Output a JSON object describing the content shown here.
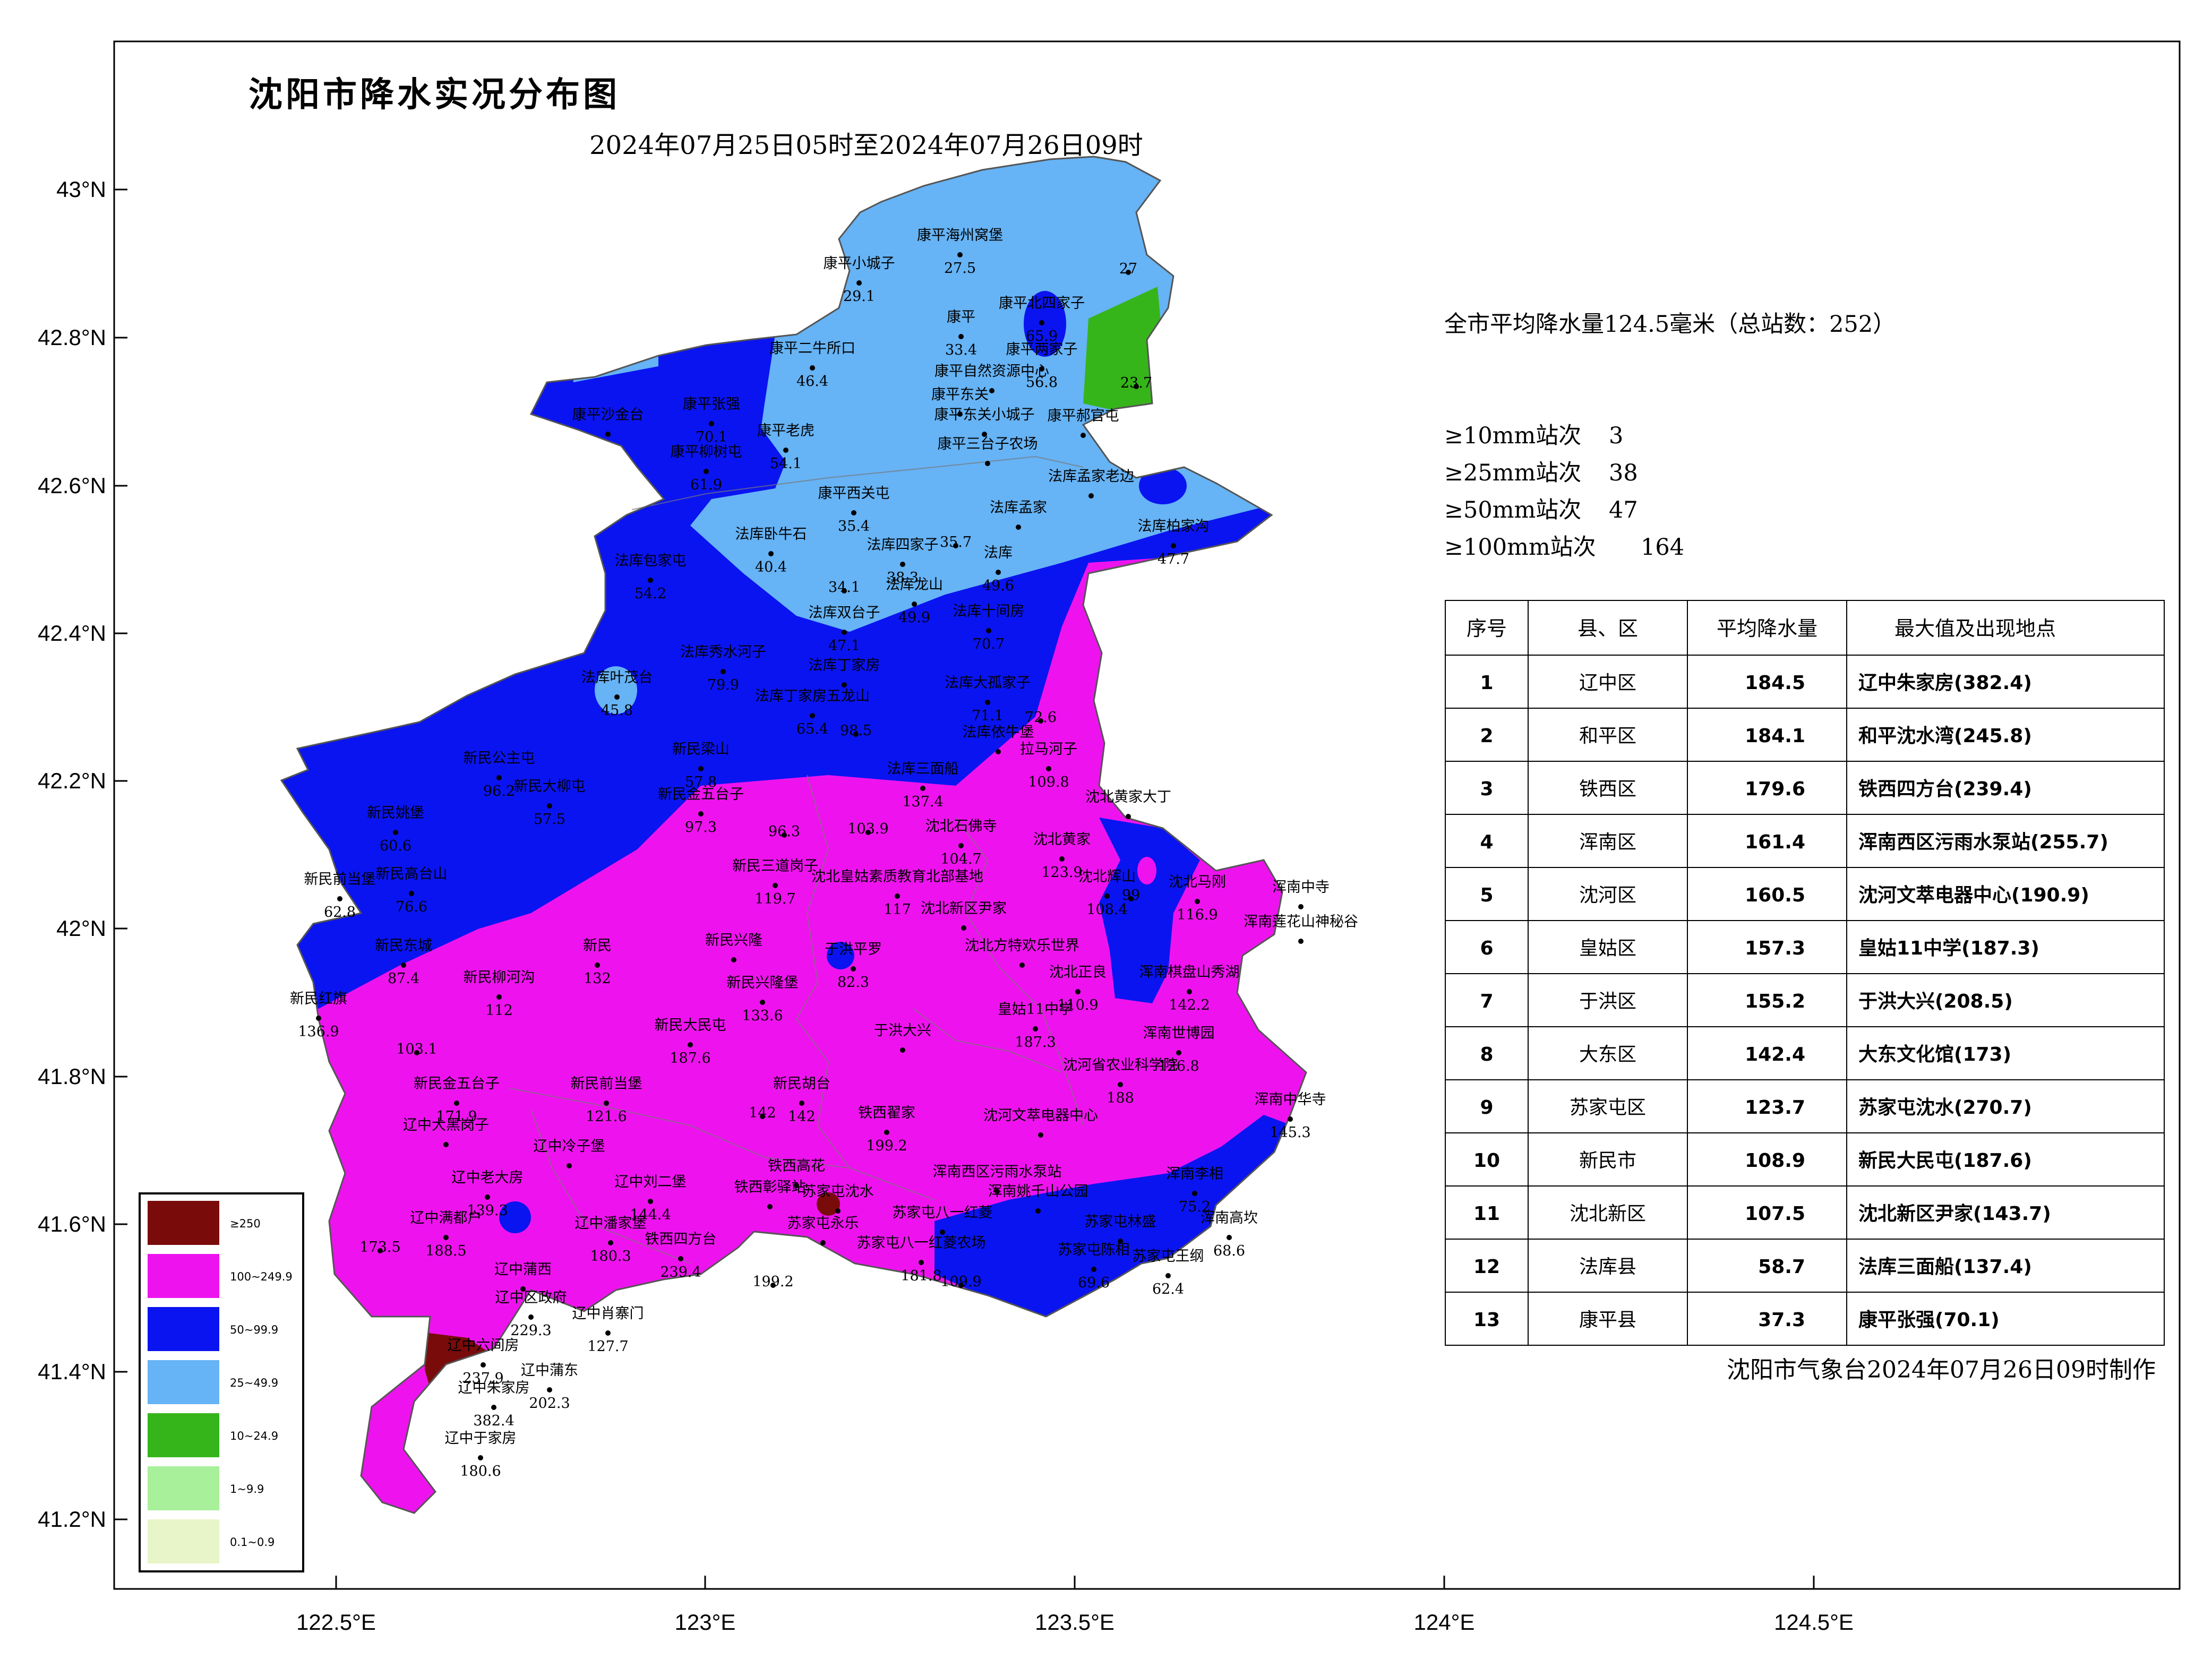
{
  "map": {
    "title": "沈阳市降水实况分布图",
    "subtitle": "2024年07月25日05时至2024年07月26日09时",
    "credit": "沈阳市气象台2024年07月26日09时制作",
    "lat_labels": [
      "43°N",
      "42.8°N",
      "42.6°N",
      "42.4°N",
      "42.2°N",
      "42°N",
      "41.8°N",
      "41.6°N",
      "41.4°N",
      "41.2°N"
    ],
    "lon_labels": [
      "122.5°E",
      "123°E",
      "123.5°E",
      "124°E",
      "124.5°E"
    ]
  },
  "summary": {
    "avg_line": "全市平均降水量124.5毫米（总站数：252）",
    "counts": [
      {
        "label": "≥10mm站次",
        "value": "3"
      },
      {
        "label": "≥25mm站次",
        "value": "38"
      },
      {
        "label": "≥50mm站次",
        "value": "47"
      },
      {
        "label": "≥100mm站次",
        "value": "164"
      }
    ]
  },
  "table": {
    "headers": [
      "序号",
      "县、区",
      "平均降水量",
      "最大值及出现地点"
    ],
    "rows": [
      [
        "1",
        "辽中区",
        "184.5",
        "辽中朱家房(382.4)"
      ],
      [
        "2",
        "和平区",
        "184.1",
        "和平沈水湾(245.8)"
      ],
      [
        "3",
        "铁西区",
        "179.6",
        "铁西四方台(239.4)"
      ],
      [
        "4",
        "浑南区",
        "161.4",
        "浑南西区污雨水泵站(255.7)"
      ],
      [
        "5",
        "沈河区",
        "160.5",
        "沈河文萃电器中心(190.9)"
      ],
      [
        "6",
        "皇姑区",
        "157.3",
        "皇姑11中学(187.3)"
      ],
      [
        "7",
        "于洪区",
        "155.2",
        "于洪大兴(208.5)"
      ],
      [
        "8",
        "大东区",
        "142.4",
        "大东文化馆(173)"
      ],
      [
        "9",
        "苏家屯区",
        "123.7",
        "苏家屯沈水(270.7)"
      ],
      [
        "10",
        "新民市",
        "108.9",
        "新民大民屯(187.6)"
      ],
      [
        "11",
        "沈北新区",
        "107.5",
        "沈北新区尹家(143.7)"
      ],
      [
        "12",
        "法库县",
        "58.7",
        "法库三面船(137.4)"
      ],
      [
        "13",
        "康平县",
        "37.3",
        "康平张强(70.1)"
      ]
    ]
  },
  "legend": [
    {
      "label": "≥250",
      "color": "#7a0b0b"
    },
    {
      "label": "100~249.9",
      "color": "#ee13ee"
    },
    {
      "label": "50~99.9",
      "color": "#0a14f0"
    },
    {
      "label": "25~49.9",
      "color": "#66b3f5"
    },
    {
      "label": "10~24.9",
      "color": "#36b51a"
    },
    {
      "label": "1~9.9",
      "color": "#a8f09a"
    },
    {
      "label": "0.1~0.9",
      "color": "#e8f5c8"
    }
  ],
  "stations": [
    {
      "name": "康平海州窝堡",
      "value": "27.5"
    },
    {
      "name": "康平小城子",
      "value": "29.1"
    },
    {
      "name": "康平",
      "value": "33.4"
    },
    {
      "name": "康平北四家子",
      "value": "65.9"
    },
    {
      "name": "康平两家子",
      "value": "56.8"
    },
    {
      "name": "",
      "value": "27"
    },
    {
      "name": "",
      "value": "23.7"
    },
    {
      "name": "康平二牛所口",
      "value": "46.4"
    },
    {
      "name": "康平自然资源中心",
      "value": ""
    },
    {
      "name": "康平东关",
      "value": ""
    },
    {
      "name": "康平东关小城子",
      "value": ""
    },
    {
      "name": "康平郝官屯",
      "value": ""
    },
    {
      "name": "康平沙金台",
      "value": ""
    },
    {
      "name": "康平张强",
      "value": "70.1"
    },
    {
      "name": "康平柳树屯",
      "value": "61.9"
    },
    {
      "name": "康平老虎",
      "value": "54.1"
    },
    {
      "name": "康平三台子农场",
      "value": ""
    },
    {
      "name": "康平西关屯",
      "value": "35.4"
    },
    {
      "name": "",
      "value": "35.7"
    },
    {
      "name": "法库孟家",
      "value": ""
    },
    {
      "name": "法库孟家老边",
      "value": ""
    },
    {
      "name": "法库卧牛石",
      "value": "40.4"
    },
    {
      "name": "法库四家子",
      "value": "38.3"
    },
    {
      "name": "",
      "value": "34.1"
    },
    {
      "name": "法库",
      "value": "49.6"
    },
    {
      "name": "法库柏家沟",
      "value": "47.7"
    },
    {
      "name": "法库包家屯",
      "value": "54.2"
    },
    {
      "name": "法库双台子",
      "value": "47.1"
    },
    {
      "name": "法库龙山",
      "value": "49.9"
    },
    {
      "name": "法库十间房",
      "value": "70.7"
    },
    {
      "name": "法库叶茂台",
      "value": "45.8"
    },
    {
      "name": "法库秀水河子",
      "value": "79.9"
    },
    {
      "name": "法库丁家房",
      "value": ""
    },
    {
      "name": "法库大孤家子",
      "value": "71.1"
    },
    {
      "name": "",
      "value": "72.6"
    },
    {
      "name": "法库丁家房五龙山",
      "value": "65.4"
    },
    {
      "name": "",
      "value": "98.5"
    },
    {
      "name": "法库依牛堡",
      "value": ""
    },
    {
      "name": "拉马河子",
      "value": "109.8"
    },
    {
      "name": "新民公主屯",
      "value": "96.2"
    },
    {
      "name": "新民大柳屯",
      "value": "57.5"
    },
    {
      "name": "新民姚堡",
      "value": "60.6"
    },
    {
      "name": "新民前当堡",
      "value": "62.8"
    },
    {
      "name": "新民高台山",
      "value": "76.6"
    },
    {
      "name": "新民梁山",
      "value": "57.8"
    },
    {
      "name": "新民金五台子",
      "value": "97.3"
    },
    {
      "name": "",
      "value": "96.3"
    },
    {
      "name": "法库三面船",
      "value": "137.4"
    },
    {
      "name": "",
      "value": "103.9"
    },
    {
      "name": "沈北石佛寺",
      "value": "104.7"
    },
    {
      "name": "沈北黄家",
      "value": "123.9"
    },
    {
      "name": "沈北黄家大丁",
      "value": ""
    },
    {
      "name": "新民三道岗子",
      "value": "119.7"
    },
    {
      "name": "沈北皇姑素质教育北部基地",
      "value": "117"
    },
    {
      "name": "沈北新区尹家",
      "value": ""
    },
    {
      "name": "沈北辉山",
      "value": "108.4"
    },
    {
      "name": "",
      "value": "99"
    },
    {
      "name": "沈北马刚",
      "value": "116.9"
    },
    {
      "name": "浑南中寺",
      "value": ""
    },
    {
      "name": "浑南莲花山神秘谷",
      "value": ""
    },
    {
      "name": "新民东城",
      "value": "87.4"
    },
    {
      "name": "新民",
      "value": "132"
    },
    {
      "name": "新民柳河沟",
      "value": "112"
    },
    {
      "name": "新民兴隆",
      "value": ""
    },
    {
      "name": "于洪平罗",
      "value": "82.3"
    },
    {
      "name": "沈北方特欢乐世界",
      "value": ""
    },
    {
      "name": "沈北正良",
      "value": "110.9"
    },
    {
      "name": "浑南棋盘山秀湖",
      "value": "142.2"
    },
    {
      "name": "新民红旗",
      "value": "136.9"
    },
    {
      "name": "",
      "value": "103.1"
    },
    {
      "name": "新民兴隆堡",
      "value": "133.6"
    },
    {
      "name": "皇姑11中学",
      "value": "187.3"
    },
    {
      "name": "于洪大兴",
      "value": ""
    },
    {
      "name": "浑南世博园",
      "value": "126.8"
    },
    {
      "name": "新民大民屯",
      "value": "187.6"
    },
    {
      "name": "沈河省农业科学院",
      "value": "188"
    },
    {
      "name": "新民金五台子",
      "value": "171.9"
    },
    {
      "name": "新民前当堡",
      "value": "121.6"
    },
    {
      "name": "新民胡台",
      "value": "142"
    },
    {
      "name": "",
      "value": "142"
    },
    {
      "name": "铁西翟家",
      "value": "199.2"
    },
    {
      "name": "沈河文萃电器中心",
      "value": ""
    },
    {
      "name": "浑南中华寺",
      "value": "145.3"
    },
    {
      "name": "辽中大黑岗子",
      "value": ""
    },
    {
      "name": "辽中冷子堡",
      "value": ""
    },
    {
      "name": "辽中老大房",
      "value": "139.3"
    },
    {
      "name": "辽中刘二堡",
      "value": "144.4"
    },
    {
      "name": "铁西高花",
      "value": ""
    },
    {
      "name": "铁西彰驿站",
      "value": ""
    },
    {
      "name": "浑南西区污雨水泵站",
      "value": ""
    },
    {
      "name": "浑南姚千山公园",
      "value": ""
    },
    {
      "name": "苏家屯沈水",
      "value": ""
    },
    {
      "name": "浑南李相",
      "value": "75.2"
    },
    {
      "name": "辽中满都户",
      "value": "188.5"
    },
    {
      "name": "辽中潘家堡",
      "value": "180.3"
    },
    {
      "name": "",
      "value": "173.5"
    },
    {
      "name": "铁西四方台",
      "value": "239.4"
    },
    {
      "name": "",
      "value": "199.2"
    },
    {
      "name": "苏家屯八一红菱",
      "value": ""
    },
    {
      "name": "苏家屯八一红菱农场",
      "value": "181.8"
    },
    {
      "name": "苏家屯林盛",
      "value": ""
    },
    {
      "name": "",
      "value": "109.9"
    },
    {
      "name": "苏家屯陈相",
      "value": "69.6"
    },
    {
      "name": "苏家屯王纲",
      "value": "62.4"
    },
    {
      "name": "苏家屯永乐",
      "value": ""
    },
    {
      "name": "浑南高坎",
      "value": "68.6"
    },
    {
      "name": "辽中蒲西",
      "value": ""
    },
    {
      "name": "辽中区政府",
      "value": "229.3"
    },
    {
      "name": "辽中肖寨门",
      "value": "127.7"
    },
    {
      "name": "辽中六间房",
      "value": "237.9"
    },
    {
      "name": "辽中蒲东",
      "value": "202.3"
    },
    {
      "name": "辽中朱家房",
      "value": "382.4"
    },
    {
      "name": "辽中于家房",
      "value": "180.6"
    }
  ]
}
